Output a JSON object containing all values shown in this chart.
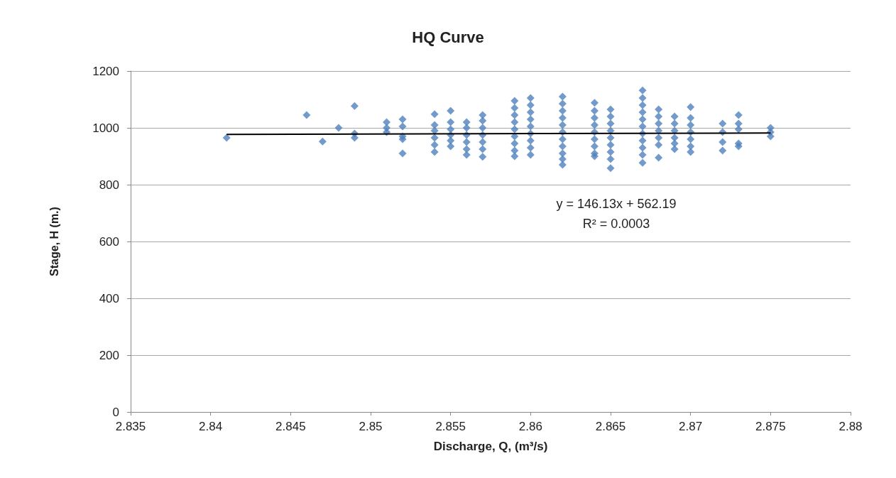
{
  "chart_data": {
    "type": "scatter",
    "title": "HQ Curve",
    "xlabel": "Discharge, Q, (m³/s)",
    "ylabel": "Stage, H (m.)",
    "annotations": [
      "y = 146.13x + 562.19",
      "R² = 0.0003"
    ],
    "xlim": [
      2.835,
      2.88
    ],
    "xticks": [
      2.835,
      2.84,
      2.845,
      2.85,
      2.855,
      2.86,
      2.865,
      2.87,
      2.875,
      2.88
    ],
    "ylim": [
      0,
      1200
    ],
    "yticks": [
      0,
      200,
      400,
      600,
      800,
      1000,
      1200
    ],
    "grid": "y",
    "marker": "diamond",
    "series": [
      {
        "color": "#4f81bd",
        "x": [
          2.841,
          2.846,
          2.847,
          2.848,
          2.849,
          2.849,
          2.849,
          2.851,
          2.851,
          2.851,
          2.852,
          2.852,
          2.852,
          2.852,
          2.852,
          2.854,
          2.854,
          2.854,
          2.854,
          2.854,
          2.854,
          2.855,
          2.855,
          2.855,
          2.855,
          2.855,
          2.855,
          2.856,
          2.856,
          2.856,
          2.856,
          2.856,
          2.856,
          2.857,
          2.857,
          2.857,
          2.857,
          2.857,
          2.857,
          2.857,
          2.859,
          2.859,
          2.859,
          2.859,
          2.859,
          2.859,
          2.859,
          2.859,
          2.859,
          2.86,
          2.86,
          2.86,
          2.86,
          2.86,
          2.86,
          2.86,
          2.86,
          2.86,
          2.862,
          2.862,
          2.862,
          2.862,
          2.862,
          2.862,
          2.862,
          2.862,
          2.862,
          2.862,
          2.862,
          2.864,
          2.864,
          2.864,
          2.864,
          2.864,
          2.864,
          2.864,
          2.864,
          2.864,
          2.865,
          2.865,
          2.865,
          2.865,
          2.865,
          2.865,
          2.865,
          2.865,
          2.865,
          2.867,
          2.867,
          2.867,
          2.867,
          2.867,
          2.867,
          2.867,
          2.867,
          2.867,
          2.867,
          2.867,
          2.868,
          2.868,
          2.868,
          2.868,
          2.868,
          2.868,
          2.868,
          2.869,
          2.869,
          2.869,
          2.869,
          2.869,
          2.869,
          2.87,
          2.87,
          2.87,
          2.87,
          2.87,
          2.87,
          2.87,
          2.872,
          2.872,
          2.872,
          2.872,
          2.873,
          2.873,
          2.873,
          2.873,
          2.873,
          2.875,
          2.875,
          2.875
        ],
        "values": [
          965,
          1045,
          952,
          1000,
          1077,
          980,
          965,
          1020,
          1000,
          985,
          1030,
          1005,
          970,
          960,
          910,
          1048,
          1010,
          990,
          965,
          940,
          915,
          1060,
          1020,
          995,
          975,
          955,
          935,
          1020,
          1000,
          975,
          950,
          925,
          905,
          1045,
          1025,
          1000,
          975,
          950,
          925,
          898,
          1095,
          1070,
          1045,
          1020,
          995,
          970,
          945,
          920,
          900,
          1105,
          1080,
          1055,
          1030,
          1005,
          980,
          955,
          930,
          905,
          1110,
          1085,
          1060,
          1035,
          1010,
          985,
          960,
          935,
          910,
          890,
          870,
          1088,
          1060,
          1035,
          1010,
          985,
          960,
          935,
          910,
          900,
          1065,
          1040,
          1015,
          990,
          965,
          940,
          915,
          890,
          858,
          1132,
          1105,
          1080,
          1055,
          1030,
          1005,
          980,
          955,
          930,
          905,
          877,
          1065,
          1040,
          1015,
          990,
          965,
          940,
          895,
          1040,
          1015,
          990,
          965,
          945,
          925,
          1073,
          1035,
          1010,
          985,
          960,
          935,
          915,
          1015,
          985,
          950,
          920,
          1045,
          1015,
          995,
          945,
          935,
          1000,
          985,
          970
        ]
      },
      {
        "type": "line",
        "color": "#000000",
        "marker": "none",
        "x": [
          2.841,
          2.875
        ],
        "values": [
          977,
          982
        ]
      }
    ]
  }
}
